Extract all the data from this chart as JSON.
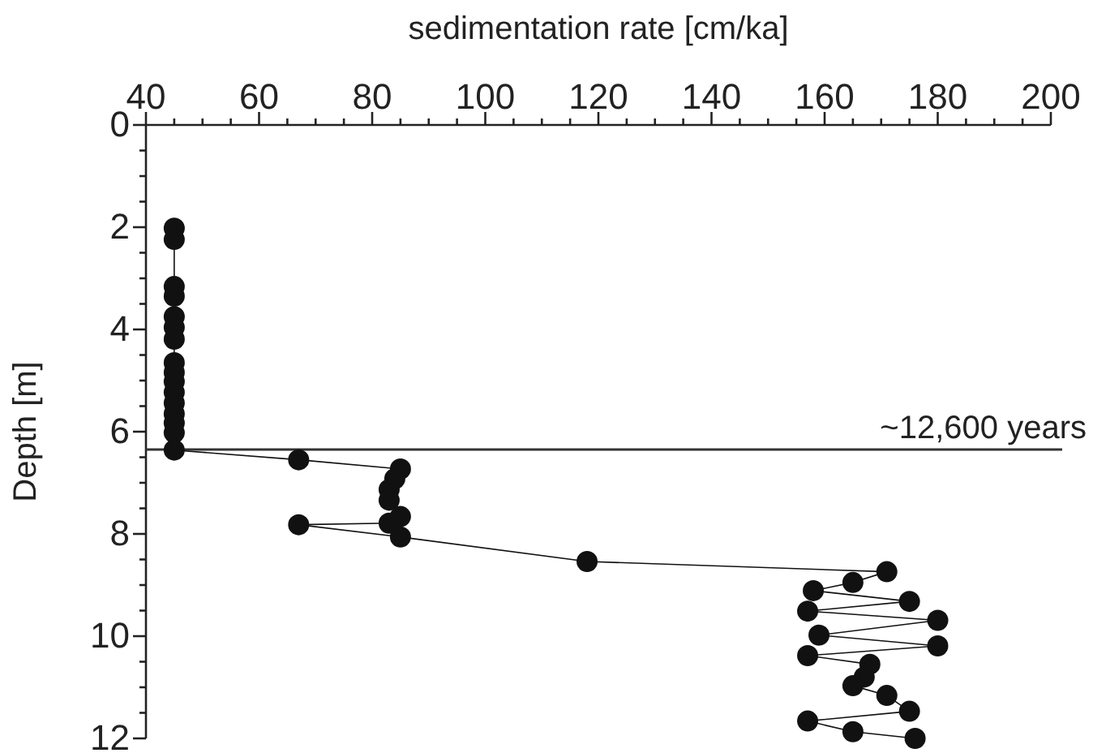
{
  "chart_data": {
    "type": "line",
    "xlabel": "sedimentation rate [cm/ka]",
    "ylabel": "Depth [m]",
    "xlim": [
      40,
      200
    ],
    "xticks": [
      40,
      {
        "value": 45,
        "label": null
      },
      {
        "value": 50,
        "label": null
      },
      {
        "value": 55,
        "label": null
      },
      60,
      {
        "value": 65,
        "label": null
      },
      {
        "value": 70,
        "label": null
      },
      {
        "value": 75,
        "label": null
      },
      80,
      {
        "value": 85,
        "label": null
      },
      {
        "value": 90,
        "label": null
      },
      {
        "value": 95,
        "label": null
      },
      100,
      {
        "value": 105,
        "label": null
      },
      {
        "value": 110,
        "label": null
      },
      {
        "value": 115,
        "label": null
      },
      120,
      {
        "value": 125,
        "label": null
      },
      {
        "value": 130,
        "label": null
      },
      {
        "value": 135,
        "label": null
      },
      140,
      {
        "value": 145,
        "label": null
      },
      {
        "value": 150,
        "label": null
      },
      {
        "value": 155,
        "label": null
      },
      160,
      {
        "value": 165,
        "label": null
      },
      {
        "value": 170,
        "label": null
      },
      {
        "value": 175,
        "label": null
      },
      180,
      {
        "value": 185,
        "label": null
      },
      {
        "value": 190,
        "label": null
      },
      {
        "value": 195,
        "label": null
      },
      200
    ],
    "ylim": [
      12,
      0
    ],
    "yticks": [
      0,
      {
        "value": 0.5,
        "label": null
      },
      {
        "value": 1,
        "label": null
      },
      {
        "value": 1.5,
        "label": null
      },
      2,
      {
        "value": 2.5,
        "label": null
      },
      {
        "value": 3,
        "label": null
      },
      {
        "value": 3.5,
        "label": null
      },
      4,
      {
        "value": 4.5,
        "label": null
      },
      {
        "value": 5,
        "label": null
      },
      {
        "value": 5.5,
        "label": null
      },
      6,
      {
        "value": 6.5,
        "label": null
      },
      {
        "value": 7,
        "label": null
      },
      {
        "value": 7.5,
        "label": null
      },
      8,
      {
        "value": 8.5,
        "label": null
      },
      {
        "value": 9,
        "label": null
      },
      {
        "value": 9.5,
        "label": null
      },
      10,
      {
        "value": 10.5,
        "label": null
      },
      {
        "value": 11,
        "label": null
      },
      {
        "value": 11.5,
        "label": null
      },
      12
    ],
    "grid": false,
    "marker": "circle",
    "line_style": "solid",
    "series": [
      {
        "color": "#111111",
        "x": [
          45,
          45,
          45,
          45,
          45,
          45,
          45,
          45,
          45,
          45,
          45,
          45,
          45,
          45,
          45,
          45,
          67,
          85,
          84,
          83,
          83,
          85,
          83,
          67,
          85,
          118,
          171,
          165,
          158,
          175,
          157,
          180,
          159,
          180,
          157,
          168,
          167,
          165,
          171,
          175,
          157,
          165,
          176
        ],
        "values": [
          2.02,
          2.24,
          3.16,
          3.35,
          3.75,
          3.96,
          4.19,
          4.65,
          4.84,
          5.02,
          5.23,
          5.44,
          5.65,
          5.83,
          6.02,
          6.36,
          6.55,
          6.73,
          6.92,
          7.13,
          7.34,
          7.66,
          7.79,
          7.82,
          8.06,
          8.54,
          8.74,
          8.95,
          9.11,
          9.32,
          9.51,
          9.69,
          9.98,
          10.19,
          10.38,
          10.55,
          10.8,
          10.97,
          11.16,
          11.47,
          11.66,
          11.87,
          12
        ]
      }
    ],
    "ref_lines": [
      {
        "axis": "y",
        "value": 6.35,
        "label": "~12,600 years",
        "color": "#333333"
      }
    ]
  }
}
